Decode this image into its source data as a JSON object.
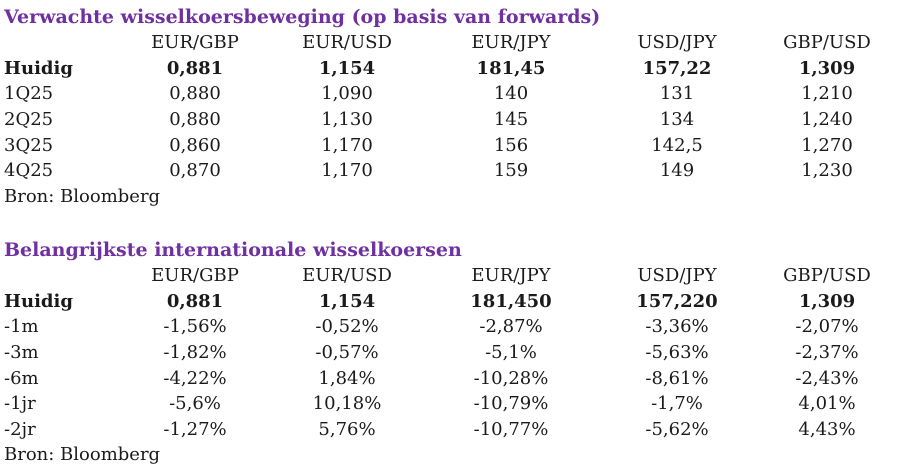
{
  "section1": {
    "title": "Verwachte wisselkoersbeweging (op basis van forwards)",
    "headers": [
      "",
      "EUR/GBP",
      "EUR/USD",
      "EUR/JPY",
      "USD/JPY",
      "GBP/USD"
    ],
    "rows": [
      {
        "label": "Huidig",
        "values": [
          "0,881",
          "1,154",
          "181,45",
          "157,22",
          "1,309"
        ]
      },
      {
        "label": "1Q25",
        "values": [
          "0,880",
          "1,090",
          "140",
          "131",
          "1,210"
        ]
      },
      {
        "label": "2Q25",
        "values": [
          "0,880",
          "1,130",
          "145",
          "134",
          "1,240"
        ]
      },
      {
        "label": "3Q25",
        "values": [
          "0,860",
          "1,170",
          "156",
          "142,5",
          "1,270"
        ]
      },
      {
        "label": "4Q25",
        "values": [
          "0,870",
          "1,170",
          "159",
          "149",
          "1,230"
        ]
      }
    ],
    "source": "Bron: Bloomberg"
  },
  "section2": {
    "title": "Belangrijkste internationale wisselkoersen",
    "headers": [
      "",
      "EUR/GBP",
      "EUR/USD",
      "EUR/JPY",
      "USD/JPY",
      "GBP/USD"
    ],
    "rows": [
      {
        "label": "Huidig",
        "values": [
          "0,881",
          "1,154",
          "181,450",
          "157,220",
          "1,309"
        ]
      },
      {
        "label": "-1m",
        "values": [
          "-1,56%",
          "-0,52%",
          "-2,87%",
          "-3,36%",
          "-2,07%"
        ]
      },
      {
        "label": "-3m",
        "values": [
          "-1,82%",
          "-0,57%",
          "-5,1%",
          "-5,63%",
          "-2,37%"
        ]
      },
      {
        "label": "-6m",
        "values": [
          "-4,22%",
          "1,84%",
          "-10,28%",
          "-8,61%",
          "-2,43%"
        ]
      },
      {
        "label": "-1jr",
        "values": [
          "-5,6%",
          "10,18%",
          "-10,79%",
          "-1,7%",
          "4,01%"
        ]
      },
      {
        "label": "-2jr",
        "values": [
          "-1,27%",
          "5,76%",
          "-10,77%",
          "-5,62%",
          "4,43%"
        ]
      }
    ],
    "source": "Bron: Bloomberg"
  }
}
